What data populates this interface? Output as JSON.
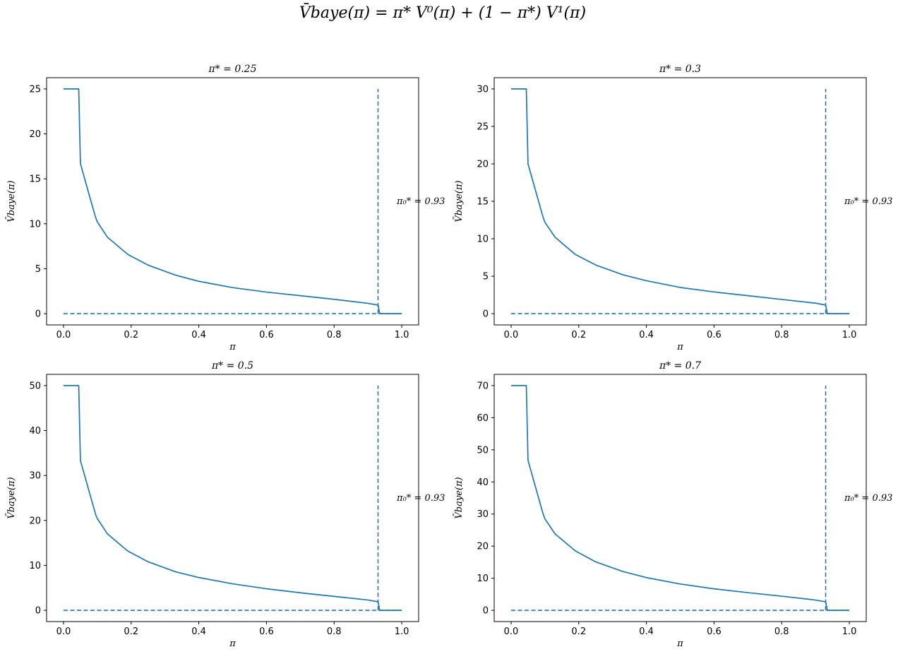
{
  "figure": {
    "suptitle": "V̄baye(π) = π* V⁰(π) + (1 − π*) V¹(π)",
    "line_color": "#1f77b4"
  },
  "chart_data": [
    {
      "type": "line",
      "title": "π* = 0.25",
      "xlabel": "π",
      "ylabel": "V̄baye(π)",
      "xlim": [
        -0.05,
        1.05
      ],
      "ylim": [
        -1.25,
        26.25
      ],
      "xticks": [
        0.0,
        0.2,
        0.4,
        0.6,
        0.8,
        1.0
      ],
      "xtick_labels": [
        "0.0",
        "0.2",
        "0.4",
        "0.6",
        "0.8",
        "1.0"
      ],
      "yticks": [
        0,
        5,
        10,
        15,
        20,
        25
      ],
      "ytick_labels": [
        "0",
        "5",
        "10",
        "15",
        "20",
        "25"
      ],
      "annotation": "π₀* = 0.93",
      "annotation_pos": [
        1.0,
        12.5
      ],
      "vline": {
        "x": 0.93,
        "y0": 0,
        "y1": 25,
        "style": "dashed"
      },
      "hline": {
        "y": 0,
        "x0": 0,
        "x1": 1.0,
        "style": "dashed"
      },
      "series": [
        {
          "x": [
            0.0,
            0.045,
            0.05,
            0.07,
            0.085,
            0.095,
            0.1,
            0.13,
            0.19,
            0.25,
            0.33,
            0.4,
            0.5,
            0.6,
            0.7,
            0.8,
            0.9,
            0.93,
            0.935,
            1.0
          ],
          "values": [
            25.0,
            25.0,
            16.7,
            14.0,
            12.0,
            10.7,
            10.2,
            8.5,
            6.6,
            5.4,
            4.3,
            3.6,
            2.9,
            2.4,
            2.0,
            1.6,
            1.15,
            0.95,
            0.0,
            0.0
          ]
        }
      ]
    },
    {
      "type": "line",
      "title": "π* = 0.3",
      "xlabel": "π",
      "ylabel": "V̄baye(π)",
      "xlim": [
        -0.05,
        1.05
      ],
      "ylim": [
        -1.5,
        31.5
      ],
      "xticks": [
        0.0,
        0.2,
        0.4,
        0.6,
        0.8,
        1.0
      ],
      "xtick_labels": [
        "0.0",
        "0.2",
        "0.4",
        "0.6",
        "0.8",
        "1.0"
      ],
      "yticks": [
        0,
        5,
        10,
        15,
        20,
        25,
        30
      ],
      "ytick_labels": [
        "0",
        "5",
        "10",
        "15",
        "20",
        "25",
        "30"
      ],
      "annotation": "π₀* = 0.93",
      "annotation_pos": [
        1.0,
        15.0
      ],
      "vline": {
        "x": 0.93,
        "y0": 0,
        "y1": 30,
        "style": "dashed"
      },
      "hline": {
        "y": 0,
        "x0": 0,
        "x1": 1.0,
        "style": "dashed"
      },
      "series": [
        {
          "x": [
            0.0,
            0.045,
            0.05,
            0.07,
            0.085,
            0.095,
            0.1,
            0.13,
            0.19,
            0.25,
            0.33,
            0.4,
            0.5,
            0.6,
            0.7,
            0.8,
            0.9,
            0.93,
            0.935,
            1.0
          ],
          "values": [
            30.0,
            30.0,
            20.0,
            16.8,
            14.4,
            12.8,
            12.2,
            10.2,
            7.9,
            6.5,
            5.2,
            4.4,
            3.5,
            2.9,
            2.4,
            1.9,
            1.4,
            1.15,
            0.0,
            0.0
          ]
        }
      ]
    },
    {
      "type": "line",
      "title": "π* = 0.5",
      "xlabel": "π",
      "ylabel": "V̄baye(π)",
      "xlim": [
        -0.05,
        1.05
      ],
      "ylim": [
        -2.5,
        52.5
      ],
      "xticks": [
        0.0,
        0.2,
        0.4,
        0.6,
        0.8,
        1.0
      ],
      "xtick_labels": [
        "0.0",
        "0.2",
        "0.4",
        "0.6",
        "0.8",
        "1.0"
      ],
      "yticks": [
        0,
        10,
        20,
        30,
        40,
        50
      ],
      "ytick_labels": [
        "0",
        "10",
        "20",
        "30",
        "40",
        "50"
      ],
      "annotation": "π₀* = 0.93",
      "annotation_pos": [
        1.0,
        25.0
      ],
      "vline": {
        "x": 0.93,
        "y0": 0,
        "y1": 50,
        "style": "dashed"
      },
      "hline": {
        "y": 0,
        "x0": 0,
        "x1": 1.0,
        "style": "dashed"
      },
      "series": [
        {
          "x": [
            0.0,
            0.045,
            0.05,
            0.07,
            0.085,
            0.095,
            0.1,
            0.13,
            0.19,
            0.25,
            0.33,
            0.4,
            0.5,
            0.6,
            0.7,
            0.8,
            0.9,
            0.93,
            0.935,
            1.0
          ],
          "values": [
            50.0,
            50.0,
            33.3,
            28.0,
            24.0,
            21.3,
            20.4,
            17.0,
            13.2,
            10.8,
            8.6,
            7.3,
            5.9,
            4.8,
            3.9,
            3.1,
            2.3,
            1.9,
            0.0,
            0.0
          ]
        }
      ]
    },
    {
      "type": "line",
      "title": "π* = 0.7",
      "xlabel": "π",
      "ylabel": "V̄baye(π)",
      "xlim": [
        -0.05,
        1.05
      ],
      "ylim": [
        -3.5,
        73.5
      ],
      "xticks": [
        0.0,
        0.2,
        0.4,
        0.6,
        0.8,
        1.0
      ],
      "xtick_labels": [
        "0.0",
        "0.2",
        "0.4",
        "0.6",
        "0.8",
        "1.0"
      ],
      "yticks": [
        0,
        10,
        20,
        30,
        40,
        50,
        60,
        70
      ],
      "ytick_labels": [
        "0",
        "10",
        "20",
        "30",
        "40",
        "50",
        "60",
        "70"
      ],
      "annotation": "π₀* = 0.93",
      "annotation_pos": [
        1.0,
        35.0
      ],
      "vline": {
        "x": 0.93,
        "y0": 0,
        "y1": 70,
        "style": "dashed"
      },
      "hline": {
        "y": 0,
        "x0": 0,
        "x1": 1.0,
        "style": "dashed"
      },
      "series": [
        {
          "x": [
            0.0,
            0.045,
            0.05,
            0.07,
            0.085,
            0.095,
            0.1,
            0.13,
            0.19,
            0.25,
            0.33,
            0.4,
            0.5,
            0.6,
            0.7,
            0.8,
            0.9,
            0.93,
            0.935,
            1.0
          ],
          "values": [
            70.0,
            70.0,
            46.7,
            39.2,
            33.6,
            29.9,
            28.5,
            23.8,
            18.5,
            15.1,
            12.1,
            10.2,
            8.2,
            6.7,
            5.5,
            4.4,
            3.2,
            2.65,
            0.0,
            0.0
          ]
        }
      ]
    }
  ]
}
